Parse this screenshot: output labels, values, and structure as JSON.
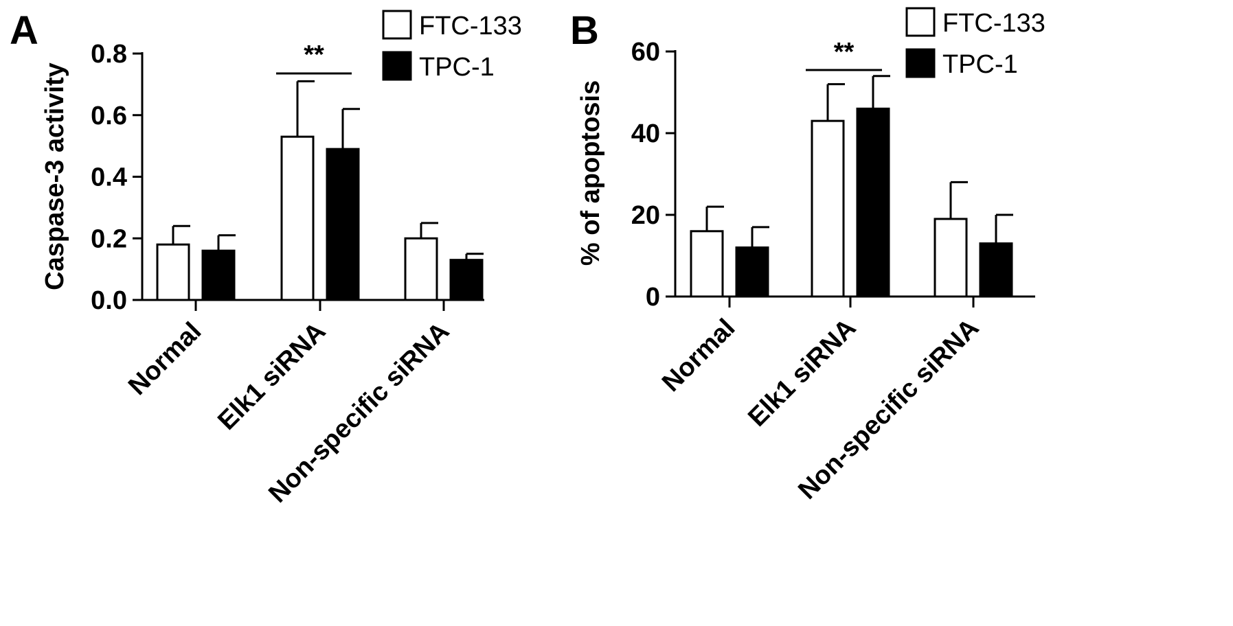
{
  "chart_data": [
    {
      "panel": "A",
      "type": "bar",
      "title": "",
      "xlabel": "",
      "ylabel": "Caspase-3 activity",
      "ylim": [
        0,
        0.8
      ],
      "yticks": [
        "0.0",
        "0.2",
        "0.4",
        "0.6",
        "0.8"
      ],
      "categories": [
        "Normal",
        "Elk1 siRNA",
        "Non-specific siRNA"
      ],
      "series": [
        {
          "name": "FTC-133",
          "values": [
            0.18,
            0.53,
            0.2
          ],
          "errors": [
            0.06,
            0.18,
            0.05
          ],
          "color": "#ffffff"
        },
        {
          "name": "TPC-1",
          "values": [
            0.16,
            0.49,
            0.13
          ],
          "errors": [
            0.05,
            0.13,
            0.02
          ],
          "color": "#000000"
        }
      ],
      "annotation": {
        "text": "**",
        "category": "Elk1 siRNA"
      },
      "legend": "top-right"
    },
    {
      "panel": "B",
      "type": "bar",
      "title": "",
      "xlabel": "",
      "ylabel": "% of apoptosis",
      "ylim": [
        0,
        60
      ],
      "yticks": [
        "0",
        "20",
        "40",
        "60"
      ],
      "categories": [
        "Normal",
        "Elk1 siRNA",
        "Non-specific siRNA"
      ],
      "series": [
        {
          "name": "FTC-133",
          "values": [
            16,
            43,
            19
          ],
          "errors": [
            6,
            9,
            9
          ],
          "color": "#ffffff"
        },
        {
          "name": "TPC-1",
          "values": [
            12,
            46,
            13
          ],
          "errors": [
            5,
            8,
            7
          ],
          "color": "#000000"
        }
      ],
      "annotation": {
        "text": "**",
        "category": "Elk1 siRNA"
      },
      "legend": "top-right"
    }
  ]
}
